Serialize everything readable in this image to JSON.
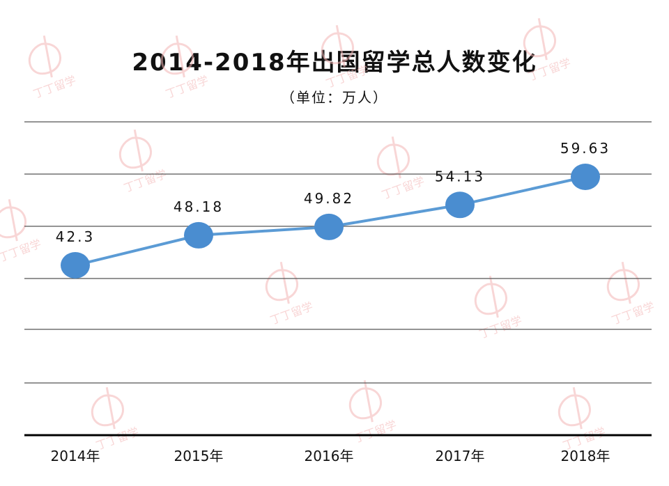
{
  "chart_data": {
    "type": "line",
    "title": "2014-2018年出国留学总人数变化",
    "subtitle": "（单位：万人）",
    "categories": [
      "2014年",
      "2015年",
      "2016年",
      "2017年",
      "2018年"
    ],
    "series": [
      {
        "values": [
          42.3,
          48.18,
          49.82,
          54.13,
          59.63
        ]
      }
    ],
    "data_labels": [
      "42.3",
      "48.18",
      "49.82",
      "54.13",
      "59.63"
    ],
    "ylim": [
      0,
      60
    ],
    "grid": true,
    "legend": "none",
    "colors": {
      "line": "#5b9bd5",
      "marker": "#4a8dd0",
      "grid": "#555555",
      "watermark": "#f4b6b6"
    }
  },
  "watermark": {
    "text": "丁丁留学"
  }
}
